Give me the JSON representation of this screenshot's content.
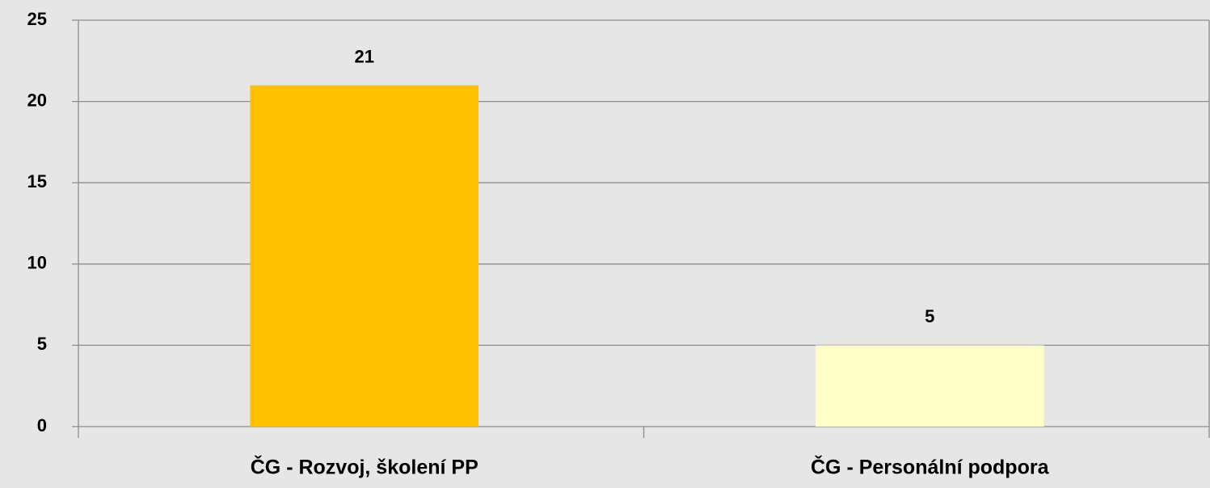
{
  "chart_data": {
    "type": "bar",
    "categories": [
      "ČG - Rozvoj, školení PP",
      "ČG - Personální podpora"
    ],
    "values": [
      21,
      5
    ],
    "colors": [
      "#ffc000",
      "#ffffc8"
    ],
    "ylim": [
      0,
      25
    ],
    "yticks": [
      0,
      5,
      10,
      15,
      20,
      25
    ],
    "grid": true
  }
}
